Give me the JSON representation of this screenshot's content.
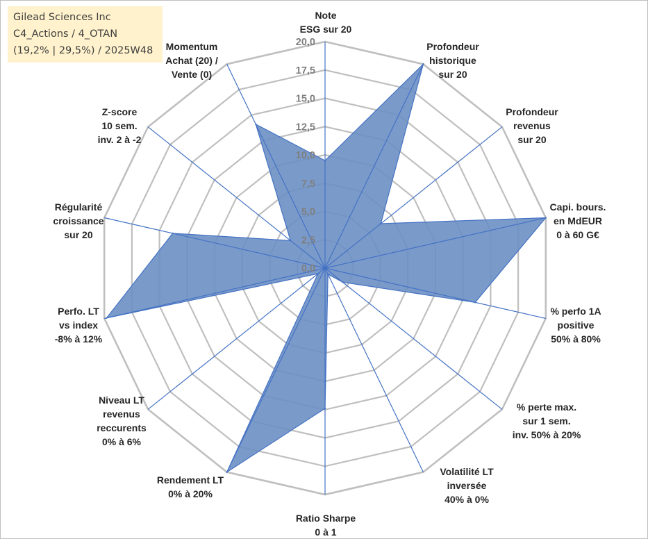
{
  "info_box": {
    "line1": "Gilead Sciences Inc",
    "line2": "C4_Actions / 4_OTAN",
    "line3": "(19,2% | 29,5%) / 2025W48"
  },
  "colors": {
    "fill": "#6b8fc4",
    "series_line": "#4472c4",
    "grid": "#bfbfbf",
    "spokes": "#4472c4",
    "info_bg": "#fff2cc"
  },
  "chart_data": {
    "type": "radar",
    "title": "",
    "rmin": 0,
    "rmax": 20,
    "tick_step": 2.5,
    "tick_labels": [
      "0,0",
      "2,5",
      "5,0",
      "7,5",
      "10,0",
      "12,5",
      "15,0",
      "17,5",
      "20,0"
    ],
    "axes": [
      [
        "Note",
        "ESG sur 20"
      ],
      [
        "Profondeur",
        "historique",
        "sur 20"
      ],
      [
        "Profondeur",
        "revenus",
        "sur 20"
      ],
      [
        "Capi. bours.",
        "en MdEUR",
        "0 à 60 G€"
      ],
      [
        "% perfo 1A",
        "positive",
        "50% à 80%"
      ],
      [
        "% perte max.",
        "sur 1 sem.",
        "inv. 50% à 20%"
      ],
      [
        "Volatilité LT",
        "inversée",
        "40% à 0%"
      ],
      [
        "Ratio Sharpe",
        "0 à 1"
      ],
      [
        "Rendement LT",
        "0% à 20%"
      ],
      [
        "Niveau LT",
        "revenus",
        "reccurents",
        "0% à 6%"
      ],
      [
        "Perfo. LT",
        "vs index",
        "-8% à 12%"
      ],
      [
        "Régularité",
        "croissance",
        "sur 20"
      ],
      [
        "Z-score",
        "10 sem.",
        "inv. 2 à -2"
      ],
      [
        "Momentum",
        "Achat (20) /",
        "Vente (0)"
      ]
    ],
    "series": [
      {
        "values": [
          9.5,
          20,
          6.3,
          20,
          13.6,
          2.0,
          0.6,
          12.4,
          20,
          0.8,
          19.8,
          13.8,
          3.9,
          14.1
        ]
      }
    ],
    "grid": true
  }
}
